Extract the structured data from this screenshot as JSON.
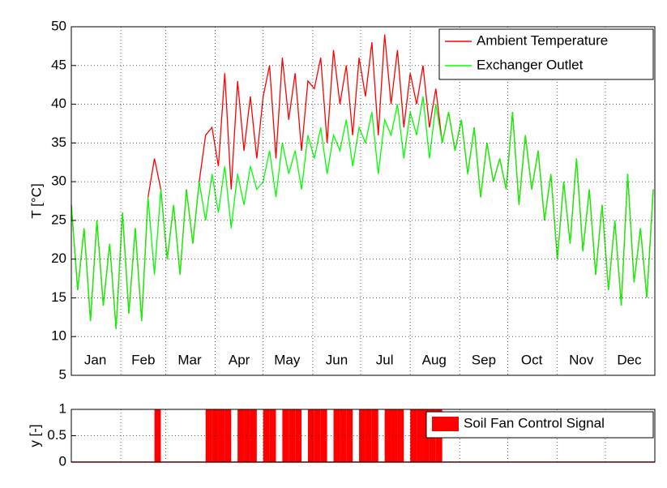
{
  "chart_data": [
    {
      "type": "line",
      "ylabel": "T [°C]",
      "xlim": [
        0,
        365
      ],
      "xticks": [
        {
          "value": 15,
          "label": "Jan"
        },
        {
          "value": 45,
          "label": "Feb"
        },
        {
          "value": 74,
          "label": "Mar"
        },
        {
          "value": 105,
          "label": "Apr"
        },
        {
          "value": 135,
          "label": "May"
        },
        {
          "value": 166,
          "label": "Jun"
        },
        {
          "value": 196,
          "label": "Jul"
        },
        {
          "value": 227,
          "label": "Aug"
        },
        {
          "value": 258,
          "label": "Sep"
        },
        {
          "value": 288,
          "label": "Oct"
        },
        {
          "value": 319,
          "label": "Nov"
        },
        {
          "value": 349,
          "label": "Dec"
        }
      ],
      "xgrid": [
        31,
        59,
        90,
        120,
        151,
        181,
        212,
        243,
        273,
        304,
        334
      ],
      "ylim": [
        5,
        50
      ],
      "yticks": [
        5,
        10,
        15,
        20,
        25,
        30,
        35,
        40,
        45,
        50
      ],
      "grid": true,
      "legend": "upper right",
      "x": [
        0,
        4,
        8,
        12,
        16,
        20,
        24,
        28,
        32,
        36,
        40,
        44,
        48,
        52,
        56,
        60,
        64,
        68,
        72,
        76,
        80,
        84,
        88,
        92,
        96,
        100,
        104,
        108,
        112,
        116,
        120,
        124,
        128,
        132,
        136,
        140,
        144,
        148,
        152,
        156,
        160,
        164,
        168,
        172,
        176,
        180,
        184,
        188,
        192,
        196,
        200,
        204,
        208,
        212,
        216,
        220,
        224,
        228,
        232,
        236,
        240,
        244,
        248,
        252,
        256,
        260,
        264,
        268,
        272,
        276,
        280,
        284,
        288,
        292,
        296,
        300,
        304,
        308,
        312,
        316,
        320,
        324,
        328,
        332,
        336,
        340,
        344,
        348,
        352,
        356,
        360,
        364
      ],
      "series": [
        {
          "name": "Ambient Temperature",
          "color": "#ff0000",
          "values": [
            27,
            16,
            24,
            12,
            25,
            14,
            22,
            11,
            26,
            13,
            24,
            12,
            28,
            33,
            29,
            20,
            27,
            18,
            29,
            22,
            30,
            36,
            37,
            32,
            44,
            29,
            43,
            34,
            41,
            33,
            41,
            45,
            33,
            46,
            38,
            44,
            34,
            43,
            42,
            46,
            35,
            47,
            40,
            45,
            36,
            46,
            41,
            48,
            36,
            49,
            40,
            47,
            37,
            44,
            40,
            45,
            37,
            42,
            35,
            39,
            34,
            38,
            31,
            37,
            28,
            35,
            30,
            33,
            29,
            39,
            27,
            36,
            29,
            34,
            25,
            31,
            20,
            30,
            22,
            33,
            21,
            29,
            18,
            27,
            16,
            25,
            14,
            31,
            17,
            24,
            15,
            29
          ]
        },
        {
          "name": "Exchanger Outlet",
          "color": "#00ff00",
          "values": [
            27,
            16,
            24,
            12,
            25,
            14,
            22,
            11,
            26,
            13,
            24,
            12,
            28,
            18,
            29,
            20,
            27,
            18,
            29,
            22,
            30,
            25,
            31,
            26,
            32,
            24,
            31,
            27,
            32,
            29,
            30,
            34,
            28,
            35,
            31,
            34,
            29,
            36,
            33,
            37,
            31,
            36,
            34,
            38,
            32,
            37,
            35,
            39,
            31,
            38,
            36,
            40,
            33,
            39,
            36,
            41,
            33,
            40,
            35,
            39,
            34,
            38,
            31,
            37,
            28,
            35,
            30,
            33,
            29,
            39,
            27,
            36,
            29,
            34,
            25,
            31,
            20,
            30,
            22,
            33,
            21,
            29,
            18,
            27,
            16,
            25,
            14,
            31,
            17,
            24,
            15,
            29
          ]
        }
      ]
    },
    {
      "type": "bar",
      "ylabel": "y [-]",
      "xlim": [
        0,
        365
      ],
      "xgrid": [
        31,
        59,
        90,
        120,
        151,
        181,
        212,
        243,
        273,
        304,
        334
      ],
      "ylim": [
        0,
        1
      ],
      "yticks": [
        0,
        0.5,
        1
      ],
      "grid": true,
      "legend": "upper right",
      "x": [
        0,
        4,
        8,
        12,
        16,
        20,
        24,
        28,
        32,
        36,
        40,
        44,
        48,
        52,
        56,
        60,
        64,
        68,
        72,
        76,
        80,
        84,
        88,
        92,
        96,
        100,
        104,
        108,
        112,
        116,
        120,
        124,
        128,
        132,
        136,
        140,
        144,
        148,
        152,
        156,
        160,
        164,
        168,
        172,
        176,
        180,
        184,
        188,
        192,
        196,
        200,
        204,
        208,
        212,
        216,
        220,
        224,
        228,
        232,
        236,
        240,
        244,
        248,
        252,
        256,
        260,
        264,
        268,
        272,
        276,
        280,
        284,
        288,
        292,
        296,
        300,
        304,
        308,
        312,
        316,
        320,
        324,
        328,
        332,
        336,
        340,
        344,
        348,
        352,
        356,
        360,
        364
      ],
      "series": [
        {
          "name": "Soil Fan Control Signal",
          "color": "#ff0000",
          "values": [
            0,
            0,
            0,
            0,
            0,
            0,
            0,
            0,
            0,
            0,
            0,
            0,
            0,
            1,
            0,
            0,
            0,
            0,
            0,
            0,
            0,
            1,
            1,
            1,
            1,
            0,
            1,
            1,
            1,
            0,
            1,
            1,
            0,
            1,
            1,
            1,
            0,
            1,
            1,
            1,
            0,
            1,
            1,
            1,
            0,
            1,
            1,
            1,
            0,
            1,
            1,
            1,
            0,
            1,
            1,
            1,
            1,
            1,
            0,
            0,
            0,
            0,
            0,
            0,
            0,
            0,
            0,
            0,
            0,
            0,
            0,
            0,
            0,
            0,
            0,
            0,
            0,
            0,
            0,
            0,
            0,
            0,
            0,
            0,
            0,
            0,
            0,
            0,
            0,
            0,
            0,
            0
          ]
        }
      ]
    }
  ]
}
